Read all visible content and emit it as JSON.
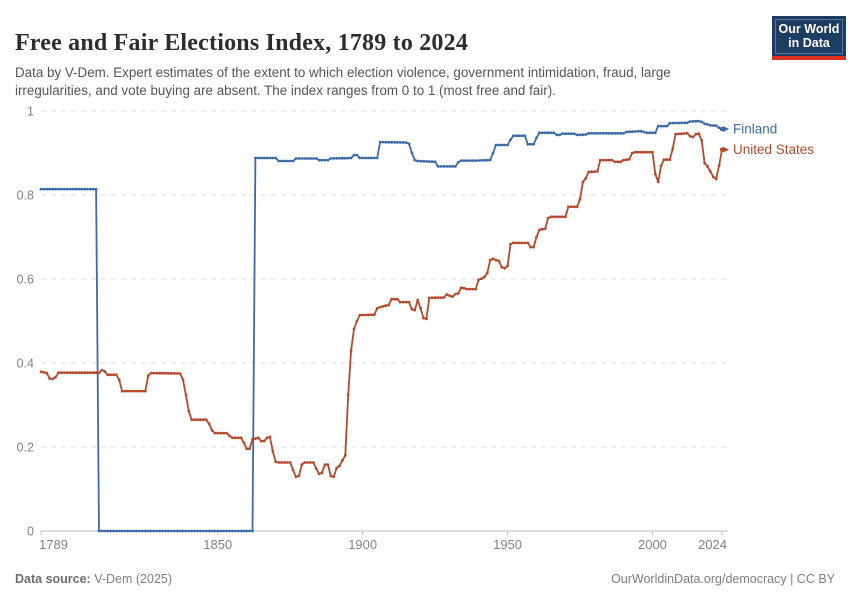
{
  "header": {
    "title": "Free and Fair Elections Index, 1789 to 2024",
    "subtitle": "Data by V-Dem. Expert estimates of the extent to which election violence, government intimidation, fraud, large irregularities, and vote buying are absent. The index ranges from 0 to 1 (most free and fair)."
  },
  "logo": {
    "line1": "Our World",
    "line2": "in Data",
    "bg_color": "#1d3d63",
    "stripe_color": "#dc2f1f"
  },
  "footer": {
    "source_label": "Data source:",
    "source_value": " V-Dem (2025)",
    "right_text": "OurWorldinData.org/democracy | CC BY"
  },
  "colors": {
    "grid": "#dcdcdc",
    "axis": "#bcbcbc",
    "tick_text": "#818181",
    "title_text": "#2d2d2d",
    "subtitle_text": "#555555"
  },
  "chart_data": {
    "type": "line",
    "title": "Free and Fair Elections Index, 1789 to 2024",
    "xlabel": "",
    "ylabel": "",
    "xlim": [
      1789,
      2024
    ],
    "ylim": [
      0,
      1
    ],
    "x_ticks": [
      1789,
      1850,
      1900,
      1950,
      2000,
      2024
    ],
    "y_ticks": [
      0,
      0.2,
      0.4,
      0.6,
      0.8,
      1
    ],
    "grid": "horizontal-dashed",
    "legend_position": "line-end-labels",
    "marker": "yearly-dots",
    "series": [
      {
        "name": "Finland",
        "color": "#3d6ba8",
        "points": [
          [
            1789,
            0.814
          ],
          [
            1808,
            0.814
          ],
          [
            1809,
            0
          ],
          [
            1862,
            0
          ],
          [
            1863,
            0.888
          ],
          [
            1870,
            0.888
          ],
          [
            1871,
            0.881
          ],
          [
            1876,
            0.881
          ],
          [
            1877,
            0.887
          ],
          [
            1884,
            0.887
          ],
          [
            1885,
            0.883
          ],
          [
            1888,
            0.883
          ],
          [
            1889,
            0.887
          ],
          [
            1896,
            0.888
          ],
          [
            1897,
            0.895
          ],
          [
            1898,
            0.895
          ],
          [
            1899,
            0.888
          ],
          [
            1905,
            0.888
          ],
          [
            1906,
            0.926
          ],
          [
            1915,
            0.925
          ],
          [
            1916,
            0.922
          ],
          [
            1917,
            0.9
          ],
          [
            1918,
            0.883
          ],
          [
            1919,
            0.881
          ],
          [
            1925,
            0.879
          ],
          [
            1926,
            0.868
          ],
          [
            1932,
            0.868
          ],
          [
            1933,
            0.878
          ],
          [
            1934,
            0.882
          ],
          [
            1939,
            0.882
          ],
          [
            1944,
            0.883
          ],
          [
            1945,
            0.9
          ],
          [
            1946,
            0.919
          ],
          [
            1950,
            0.919
          ],
          [
            1951,
            0.932
          ],
          [
            1952,
            0.941
          ],
          [
            1956,
            0.941
          ],
          [
            1957,
            0.921
          ],
          [
            1959,
            0.921
          ],
          [
            1960,
            0.936
          ],
          [
            1961,
            0.948
          ],
          [
            1966,
            0.948
          ],
          [
            1967,
            0.943
          ],
          [
            1968,
            0.943
          ],
          [
            1969,
            0.946
          ],
          [
            1973,
            0.946
          ],
          [
            1974,
            0.943
          ],
          [
            1977,
            0.944
          ],
          [
            1978,
            0.947
          ],
          [
            1990,
            0.947
          ],
          [
            1991,
            0.95
          ],
          [
            1996,
            0.952
          ],
          [
            1997,
            0.95
          ],
          [
            1998,
            0.948
          ],
          [
            2001,
            0.948
          ],
          [
            2002,
            0.964
          ],
          [
            2005,
            0.964
          ],
          [
            2006,
            0.971
          ],
          [
            2012,
            0.972
          ],
          [
            2013,
            0.975
          ],
          [
            2016,
            0.976
          ],
          [
            2017,
            0.974
          ],
          [
            2018,
            0.97
          ],
          [
            2019,
            0.968
          ],
          [
            2020,
            0.966
          ],
          [
            2022,
            0.965
          ],
          [
            2023,
            0.96
          ],
          [
            2024,
            0.957
          ]
        ]
      },
      {
        "name": "United States",
        "color": "#b5492c",
        "points": [
          [
            1789,
            0.379
          ],
          [
            1791,
            0.376
          ],
          [
            1792,
            0.363
          ],
          [
            1793,
            0.362
          ],
          [
            1794,
            0.366
          ],
          [
            1795,
            0.377
          ],
          [
            1809,
            0.377
          ],
          [
            1810,
            0.383
          ],
          [
            1811,
            0.38
          ],
          [
            1812,
            0.372
          ],
          [
            1815,
            0.372
          ],
          [
            1816,
            0.36
          ],
          [
            1817,
            0.333
          ],
          [
            1825,
            0.333
          ],
          [
            1826,
            0.37
          ],
          [
            1827,
            0.376
          ],
          [
            1837,
            0.375
          ],
          [
            1838,
            0.36
          ],
          [
            1839,
            0.324
          ],
          [
            1840,
            0.285
          ],
          [
            1841,
            0.265
          ],
          [
            1846,
            0.265
          ],
          [
            1847,
            0.255
          ],
          [
            1848,
            0.24
          ],
          [
            1849,
            0.233
          ],
          [
            1853,
            0.233
          ],
          [
            1854,
            0.227
          ],
          [
            1855,
            0.222
          ],
          [
            1858,
            0.222
          ],
          [
            1859,
            0.21
          ],
          [
            1860,
            0.196
          ],
          [
            1861,
            0.196
          ],
          [
            1862,
            0.218
          ],
          [
            1864,
            0.222
          ],
          [
            1865,
            0.214
          ],
          [
            1866,
            0.214
          ],
          [
            1867,
            0.222
          ],
          [
            1868,
            0.224
          ],
          [
            1869,
            0.19
          ],
          [
            1870,
            0.165
          ],
          [
            1871,
            0.163
          ],
          [
            1875,
            0.163
          ],
          [
            1876,
            0.145
          ],
          [
            1877,
            0.129
          ],
          [
            1878,
            0.131
          ],
          [
            1879,
            0.158
          ],
          [
            1880,
            0.163
          ],
          [
            1883,
            0.163
          ],
          [
            1884,
            0.148
          ],
          [
            1885,
            0.136
          ],
          [
            1886,
            0.139
          ],
          [
            1887,
            0.158
          ],
          [
            1888,
            0.158
          ],
          [
            1889,
            0.131
          ],
          [
            1890,
            0.129
          ],
          [
            1891,
            0.15
          ],
          [
            1892,
            0.155
          ],
          [
            1893,
            0.168
          ],
          [
            1894,
            0.18
          ],
          [
            1895,
            0.324
          ],
          [
            1896,
            0.43
          ],
          [
            1897,
            0.481
          ],
          [
            1898,
            0.5
          ],
          [
            1899,
            0.514
          ],
          [
            1904,
            0.515
          ],
          [
            1905,
            0.53
          ],
          [
            1906,
            0.533
          ],
          [
            1909,
            0.538
          ],
          [
            1910,
            0.552
          ],
          [
            1912,
            0.552
          ],
          [
            1913,
            0.545
          ],
          [
            1916,
            0.545
          ],
          [
            1917,
            0.528
          ],
          [
            1918,
            0.526
          ],
          [
            1919,
            0.55
          ],
          [
            1920,
            0.53
          ],
          [
            1921,
            0.507
          ],
          [
            1922,
            0.505
          ],
          [
            1923,
            0.555
          ],
          [
            1928,
            0.556
          ],
          [
            1929,
            0.563
          ],
          [
            1931,
            0.558
          ],
          [
            1932,
            0.564
          ],
          [
            1933,
            0.566
          ],
          [
            1934,
            0.579
          ],
          [
            1935,
            0.578
          ],
          [
            1936,
            0.576
          ],
          [
            1939,
            0.576
          ],
          [
            1940,
            0.598
          ],
          [
            1941,
            0.601
          ],
          [
            1942,
            0.605
          ],
          [
            1943,
            0.614
          ],
          [
            1944,
            0.645
          ],
          [
            1945,
            0.648
          ],
          [
            1946,
            0.645
          ],
          [
            1947,
            0.643
          ],
          [
            1948,
            0.628
          ],
          [
            1949,
            0.626
          ],
          [
            1950,
            0.631
          ],
          [
            1951,
            0.683
          ],
          [
            1952,
            0.686
          ],
          [
            1957,
            0.686
          ],
          [
            1958,
            0.676
          ],
          [
            1959,
            0.676
          ],
          [
            1960,
            0.7
          ],
          [
            1961,
            0.717
          ],
          [
            1963,
            0.72
          ],
          [
            1964,
            0.745
          ],
          [
            1965,
            0.748
          ],
          [
            1970,
            0.748
          ],
          [
            1971,
            0.772
          ],
          [
            1974,
            0.772
          ],
          [
            1975,
            0.79
          ],
          [
            1976,
            0.831
          ],
          [
            1977,
            0.84
          ],
          [
            1978,
            0.855
          ],
          [
            1981,
            0.856
          ],
          [
            1982,
            0.883
          ],
          [
            1986,
            0.883
          ],
          [
            1987,
            0.879
          ],
          [
            1989,
            0.879
          ],
          [
            1990,
            0.883
          ],
          [
            1992,
            0.885
          ],
          [
            1993,
            0.9
          ],
          [
            1994,
            0.902
          ],
          [
            2000,
            0.902
          ],
          [
            2001,
            0.85
          ],
          [
            2002,
            0.831
          ],
          [
            2003,
            0.87
          ],
          [
            2004,
            0.884
          ],
          [
            2006,
            0.884
          ],
          [
            2007,
            0.91
          ],
          [
            2008,
            0.945
          ],
          [
            2012,
            0.947
          ],
          [
            2013,
            0.94
          ],
          [
            2014,
            0.938
          ],
          [
            2015,
            0.945
          ],
          [
            2016,
            0.946
          ],
          [
            2017,
            0.93
          ],
          [
            2018,
            0.876
          ],
          [
            2019,
            0.868
          ],
          [
            2020,
            0.856
          ],
          [
            2021,
            0.843
          ],
          [
            2022,
            0.838
          ],
          [
            2023,
            0.87
          ],
          [
            2024,
            0.908
          ]
        ]
      }
    ]
  }
}
